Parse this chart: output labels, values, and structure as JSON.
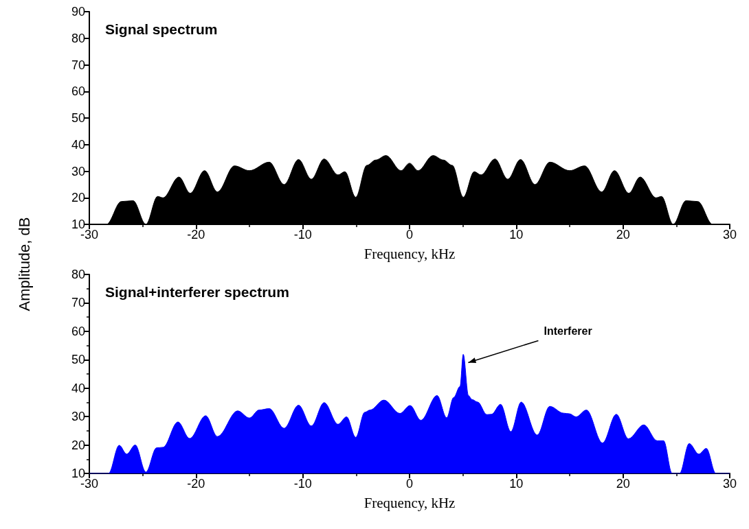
{
  "chart_data": [
    {
      "type": "area",
      "title": "Signal spectrum",
      "xlabel": "Frequency, kHz",
      "ylabel": "Amplitude, dB",
      "xlim": [
        -30,
        30
      ],
      "xticks": [
        -30,
        -20,
        -10,
        0,
        10,
        20,
        30
      ],
      "ylim": [
        10,
        90
      ],
      "yticks": [
        10,
        20,
        30,
        40,
        50,
        60,
        70,
        80,
        90
      ],
      "marker": "none",
      "grid": false,
      "series": [
        {
          "color": "#000000",
          "x": [
            -30,
            -28.4,
            -27.0,
            -25.9,
            -24.7,
            -23.6,
            -23.1,
            -21.6,
            -20.55,
            -19.2,
            -18.0,
            -16.4,
            -15.0,
            -13.15,
            -11.75,
            -10.4,
            -9.2,
            -8.0,
            -6.7,
            -6.06,
            -5.04,
            -4.0,
            -3.17,
            -2.2,
            -0.8,
            0,
            0.8,
            2.2,
            3.17,
            4.0,
            5.04,
            6.06,
            6.7,
            8.0,
            9.2,
            10.4,
            11.75,
            13.15,
            15.0,
            16.4,
            18.0,
            19.2,
            20.55,
            21.6,
            23.1,
            23.6,
            24.7,
            25.9,
            27.0,
            28.4,
            30
          ],
          "values": [
            10,
            10,
            18.6,
            18.9,
            10,
            20.5,
            20.0,
            27.8,
            21.7,
            30.2,
            22.2,
            32.0,
            30.2,
            33.4,
            25.0,
            34.4,
            27.0,
            34.6,
            28.6,
            29.8,
            20.2,
            32.2,
            34.2,
            35.9,
            30.2,
            33.0,
            30.2,
            35.9,
            34.2,
            32.2,
            20.2,
            29.8,
            28.6,
            34.6,
            27.0,
            34.4,
            25.0,
            33.4,
            30.2,
            32.0,
            22.2,
            30.2,
            21.7,
            27.8,
            20.0,
            20.5,
            10,
            18.9,
            18.6,
            10,
            10
          ]
        }
      ]
    },
    {
      "type": "area",
      "title": "Signal+interferer spectrum",
      "xlabel": "Frequency, kHz",
      "xlim": [
        -30,
        30
      ],
      "xticks": [
        -30,
        -20,
        -10,
        0,
        10,
        20,
        30
      ],
      "ylim": [
        10,
        80
      ],
      "yticks": [
        10,
        20,
        30,
        40,
        50,
        60,
        70,
        80
      ],
      "marker": "none",
      "grid": false,
      "annotations": [
        {
          "text": "Interferer",
          "x": 5.5,
          "y": 49
        }
      ],
      "series": [
        {
          "color": "#0000ff",
          "x": [
            -30,
            -28.2,
            -27.2,
            -26.5,
            -25.7,
            -24.7,
            -23.7,
            -23.1,
            -21.7,
            -20.6,
            -19.1,
            -18.0,
            -16.1,
            -15.0,
            -14.1,
            -13.15,
            -11.75,
            -10.4,
            -9.2,
            -8.0,
            -6.7,
            -5.9,
            -5.04,
            -4.2,
            -3.7,
            -2.4,
            -0.9,
            0.05,
            1.06,
            2.58,
            3.48,
            4.13,
            4.73,
            5.03,
            5.52,
            5.85,
            6.38,
            7.24,
            7.67,
            8.53,
            9.49,
            10.46,
            11.96,
            13.14,
            14.43,
            14.97,
            15.6,
            16.57,
            18.08,
            19.37,
            20.5,
            21.95,
            23.2,
            23.8,
            24.6,
            25.3,
            26.2,
            27.1,
            27.8,
            28.7,
            30
          ],
          "values": [
            10,
            10,
            19.9,
            16.8,
            20.0,
            10.5,
            19.0,
            19.2,
            28.1,
            22.3,
            30.3,
            23.0,
            32.0,
            29.5,
            32.3,
            32.8,
            25.9,
            34.0,
            26.7,
            34.9,
            27.3,
            29.9,
            22.7,
            31.5,
            32.3,
            35.8,
            31.1,
            33.9,
            28.7,
            37.4,
            29.6,
            36.7,
            40.6,
            51.9,
            37.4,
            36.0,
            35.1,
            30.7,
            30.8,
            34.3,
            24.7,
            35.1,
            23.5,
            33.6,
            31.2,
            31.0,
            29.9,
            32.3,
            20.7,
            30.8,
            22.2,
            27.1,
            21.5,
            21.5,
            10,
            10,
            20.5,
            16.8,
            18.8,
            10,
            10
          ]
        }
      ]
    }
  ]
}
